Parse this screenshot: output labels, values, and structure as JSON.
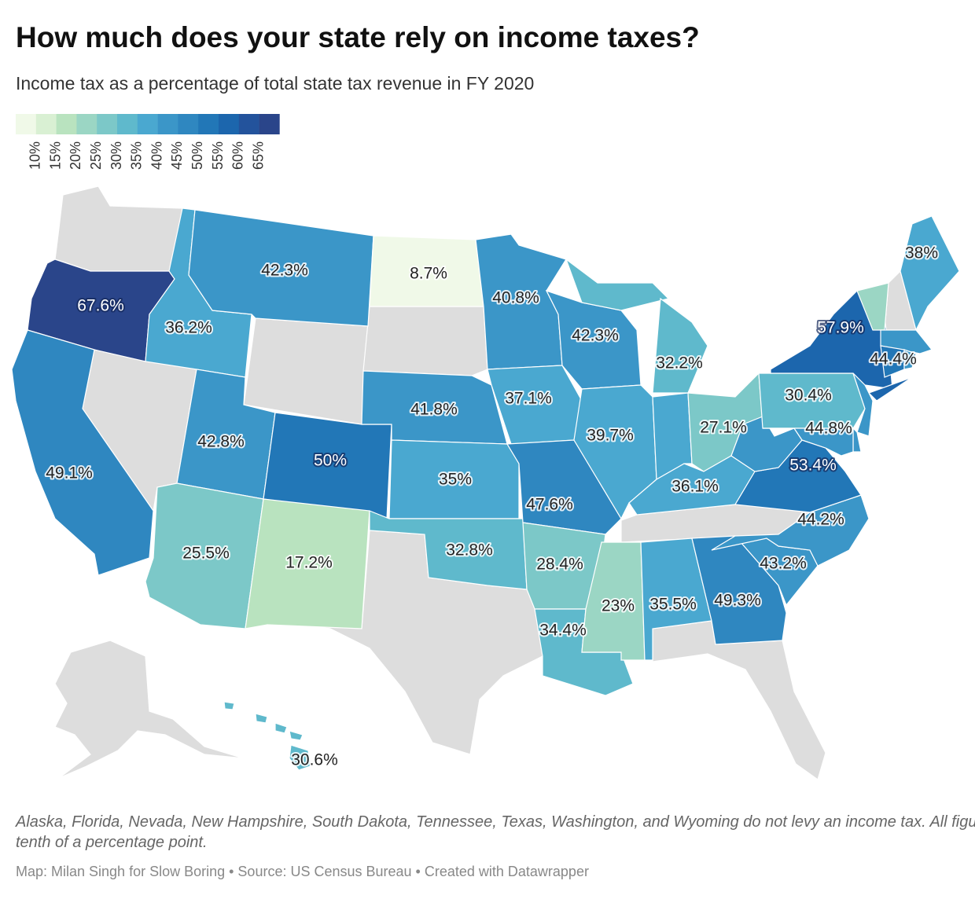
{
  "chart_data": {
    "type": "choropleth",
    "title": "How much does your state rely on income taxes?",
    "subtitle": "Income tax as a percentage of total state tax revenue in FY 2020",
    "legend": {
      "colors": [
        "#f0f9e8",
        "#d9f0d3",
        "#b9e3bf",
        "#9bd6c4",
        "#7cc8c8",
        "#5fb9cc",
        "#4aa8d0",
        "#3b96c8",
        "#2f87c0",
        "#2277b7",
        "#1c66ad",
        "#23539c",
        "#2a458a"
      ],
      "ticks": [
        {
          "value": 10,
          "label": "10%"
        },
        {
          "value": 15,
          "label": "15%"
        },
        {
          "value": 20,
          "label": "20%"
        },
        {
          "value": 25,
          "label": "25%"
        },
        {
          "value": 30,
          "label": "30%"
        },
        {
          "value": 35,
          "label": "35%"
        },
        {
          "value": 40,
          "label": "40%"
        },
        {
          "value": 45,
          "label": "45%"
        },
        {
          "value": 50,
          "label": "50%"
        },
        {
          "value": 55,
          "label": "55%"
        },
        {
          "value": 60,
          "label": "60%"
        },
        {
          "value": 65,
          "label": "65%"
        }
      ]
    },
    "values": [
      67.6,
      49.1,
      36.2,
      42.3,
      42.8,
      50,
      25.5,
      17.2,
      8.7,
      41.8,
      35,
      32.8,
      40.8,
      37.1,
      47.6,
      28.4,
      34.4,
      42.3,
      39.7,
      32.2,
      38,
      27.1,
      36.1,
      23,
      35.5,
      49.3,
      43.2,
      44.2,
      53.4,
      40,
      30.4,
      57.9,
      44,
      43,
      44.8,
      23,
      38,
      44.4,
      50,
      40,
      30.6
    ],
    "value_labels": [
      "67.6%",
      "49.1%",
      "36.2%",
      "42.3%",
      "42.8%",
      "50%",
      "25.5%",
      "17.2%",
      "8.7%",
      "41.8%",
      "35%",
      "32.8%",
      "40.8%",
      "37.1%",
      "47.6%",
      "28.4%",
      "34.4%",
      "42.3%",
      "39.7%",
      "32.2%",
      null,
      "27.1%",
      "36.1%",
      "23%",
      "35.5%",
      "49.3%",
      "43.2%",
      "44.2%",
      "53.4%",
      null,
      "30.4%",
      "57.9%",
      null,
      null,
      "44.8%",
      null,
      "38%",
      "44.4%",
      null,
      null,
      "30.6%"
    ],
    "note": "Alaska, Florida, Nevada, New Hampshire, South Dakota, Tennessee, Texas, Washington, and Wyoming do not levy an income tax. All figures are rounded to the nearest tenth of a percentage point.",
    "source": "Map: Milan Singh for Slow Boring • Source: US Census Bureau • Created with Datawrapper"
  }
}
